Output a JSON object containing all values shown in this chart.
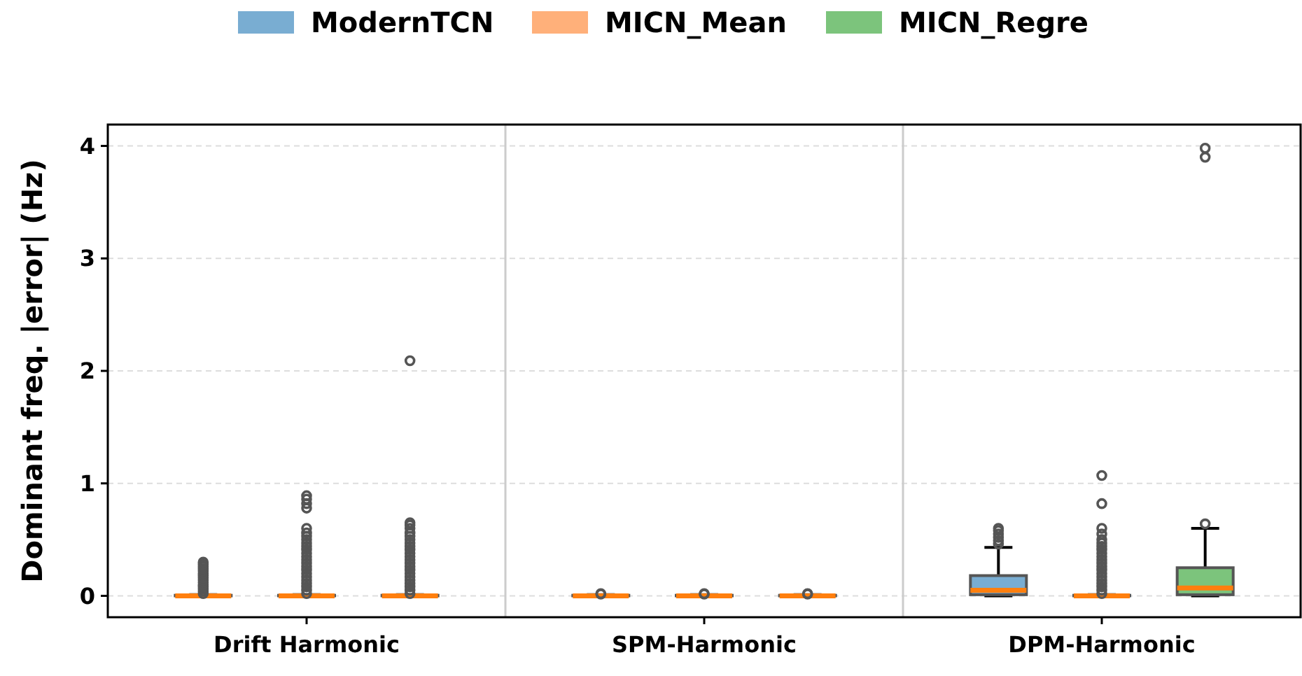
{
  "chart_data": {
    "type": "box",
    "ylabel": "Dominant freq. |error| (Hz)",
    "categories": [
      "Drift Harmonic",
      "SPM-Harmonic",
      "DPM-Harmonic"
    ],
    "ylim": [
      -0.19,
      4.19
    ],
    "yticks": [
      0,
      1,
      2,
      3,
      4
    ],
    "grid": "y",
    "legend": "top",
    "marker": "circle",
    "series": [
      {
        "name": "ModernTCN",
        "color": "#79add2",
        "boxes": [
          {
            "low": 0,
            "q1": 0,
            "median": 0,
            "q3": 0.005,
            "high": 0.01,
            "outliers": [
              0.02,
              0.04,
              0.06,
              0.08,
              0.1,
              0.12,
              0.14,
              0.16,
              0.18,
              0.2,
              0.22,
              0.24,
              0.26,
              0.28,
              0.3
            ]
          },
          {
            "low": 0,
            "q1": 0,
            "median": 0,
            "q3": 0.005,
            "high": 0.01,
            "outliers": [
              0.015,
              0.02
            ]
          },
          {
            "low": 0,
            "q1": 0.01,
            "median": 0.05,
            "q3": 0.18,
            "high": 0.43,
            "outliers": [
              0.46,
              0.49,
              0.52,
              0.55,
              0.58,
              0.6
            ]
          }
        ]
      },
      {
        "name": "MICN_Mean",
        "color": "#ffb07a",
        "boxes": [
          {
            "low": 0,
            "q1": 0,
            "median": 0,
            "q3": 0.005,
            "high": 0.01,
            "outliers": [
              0.02,
              0.05,
              0.08,
              0.11,
              0.14,
              0.17,
              0.2,
              0.23,
              0.26,
              0.29,
              0.32,
              0.35,
              0.38,
              0.41,
              0.44,
              0.47,
              0.5,
              0.53,
              0.56,
              0.6,
              0.78,
              0.82,
              0.86,
              0.89
            ]
          },
          {
            "low": 0,
            "q1": 0,
            "median": 0,
            "q3": 0.005,
            "high": 0.01,
            "outliers": [
              0.015,
              0.02
            ]
          },
          {
            "low": 0,
            "q1": 0,
            "median": 0,
            "q3": 0.005,
            "high": 0.01,
            "outliers": [
              0.02,
              0.05,
              0.08,
              0.11,
              0.14,
              0.17,
              0.2,
              0.23,
              0.26,
              0.29,
              0.32,
              0.35,
              0.38,
              0.41,
              0.44,
              0.47,
              0.5,
              0.55,
              0.6,
              0.82,
              1.07
            ]
          }
        ]
      },
      {
        "name": "MICN_Regre",
        "color": "#7cc47c",
        "boxes": [
          {
            "low": 0,
            "q1": 0,
            "median": 0,
            "q3": 0.005,
            "high": 0.01,
            "outliers": [
              0.02,
              0.05,
              0.08,
              0.11,
              0.14,
              0.17,
              0.2,
              0.23,
              0.26,
              0.29,
              0.32,
              0.35,
              0.38,
              0.41,
              0.44,
              0.47,
              0.5,
              0.53,
              0.56,
              0.6,
              0.63,
              0.65,
              2.09
            ]
          },
          {
            "low": 0,
            "q1": 0,
            "median": 0,
            "q3": 0.005,
            "high": 0.01,
            "outliers": [
              0.015,
              0.02
            ]
          },
          {
            "low": 0,
            "q1": 0.01,
            "median": 0.07,
            "q3": 0.25,
            "high": 0.6,
            "outliers": [
              0.64,
              3.9,
              3.98
            ]
          }
        ]
      }
    ]
  }
}
